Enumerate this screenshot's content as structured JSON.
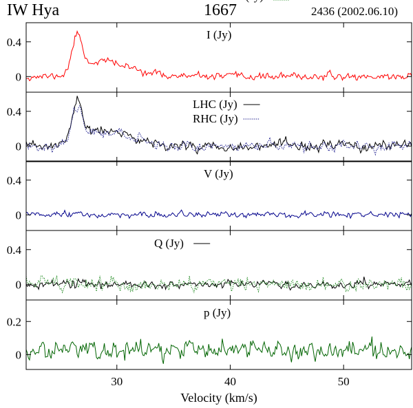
{
  "header": {
    "star": "IW Hya",
    "line": "1667",
    "epoch": "2436 (2002.06.10)"
  },
  "colors": {
    "I": "#ff0000",
    "LHC": "#000000",
    "RHC": "#1a1a8c",
    "V": "#00008b",
    "Q": "#000000",
    "U": "#228b22",
    "p": "#006400"
  },
  "chart_data": {
    "type": "line",
    "xlabel": "Velocity (km/s)",
    "xlim": [
      22.0,
      56.0
    ],
    "xticks": [
      30,
      40,
      50
    ],
    "sampling_kms": 0.1,
    "panels": [
      {
        "id": "I",
        "ylim": [
          -0.18,
          0.62
        ],
        "yticks": [
          {
            "value": 0.4,
            "label": "0.4"
          },
          {
            "value": 0,
            "label": "0"
          }
        ],
        "labels": [
          {
            "text": "I (Jy)"
          }
        ],
        "series": [
          {
            "name": "I",
            "style": "solid",
            "noise": 0.03,
            "seed": 11,
            "components": [
              {
                "center": 26.5,
                "amp": 0.43,
                "width": 0.45
              },
              {
                "center": 28.4,
                "amp": 0.15,
                "width": 1.4
              },
              {
                "center": 31.0,
                "amp": 0.08,
                "width": 1.8
              }
            ]
          }
        ]
      },
      {
        "id": "LR",
        "ylim": [
          -0.18,
          0.62
        ],
        "yticks": [
          {
            "value": 0.4,
            "label": "0.4"
          },
          {
            "value": 0,
            "label": "0"
          }
        ],
        "labels": [
          {
            "text": "LHC (Jy)"
          },
          {
            "text": "RHC (Jy)"
          }
        ],
        "series": [
          {
            "name": "LHC",
            "style": "solid",
            "noise": 0.045,
            "seed": 23,
            "components": [
              {
                "center": 26.5,
                "amp": 0.47,
                "width": 0.45
              },
              {
                "center": 28.4,
                "amp": 0.15,
                "width": 1.4
              },
              {
                "center": 31.0,
                "amp": 0.08,
                "width": 1.8
              }
            ]
          },
          {
            "name": "RHC",
            "style": "dotted",
            "noise": 0.045,
            "seed": 37,
            "components": [
              {
                "center": 26.5,
                "amp": 0.4,
                "width": 0.45
              },
              {
                "center": 28.4,
                "amp": 0.15,
                "width": 1.4
              },
              {
                "center": 31.0,
                "amp": 0.08,
                "width": 1.8
              }
            ]
          }
        ]
      },
      {
        "id": "V",
        "ylim": [
          -0.18,
          0.62
        ],
        "yticks": [
          {
            "value": 0.4,
            "label": "0.4"
          },
          {
            "value": 0,
            "label": "0"
          }
        ],
        "labels": [
          {
            "text": "V (Jy)"
          }
        ],
        "series": [
          {
            "name": "V",
            "style": "solid",
            "noise": 0.026,
            "seed": 51,
            "components": []
          }
        ]
      },
      {
        "id": "QU",
        "ylim": [
          -0.18,
          0.62
        ],
        "yticks": [
          {
            "value": 0.4,
            "label": "0.4"
          },
          {
            "value": 0,
            "label": "0"
          }
        ],
        "labels": [
          {
            "text": "Q (Jy)"
          },
          {
            "text": "U (Jy)"
          }
        ],
        "series": [
          {
            "name": "Q",
            "style": "solid",
            "noise": 0.035,
            "seed": 67,
            "components": []
          },
          {
            "name": "U",
            "style": "dotted",
            "noise": 0.06,
            "seed": 79,
            "components": []
          }
        ]
      },
      {
        "id": "p",
        "ylim": [
          -0.09,
          0.33
        ],
        "yticks": [
          {
            "value": 0.2,
            "label": "0.2"
          },
          {
            "value": 0,
            "label": "0"
          }
        ],
        "labels": [
          {
            "text": "p (Jy)"
          }
        ],
        "series": [
          {
            "name": "p",
            "style": "solid",
            "noise": 0.045,
            "seed": 97,
            "offset": 0.025,
            "components": []
          }
        ]
      }
    ]
  }
}
